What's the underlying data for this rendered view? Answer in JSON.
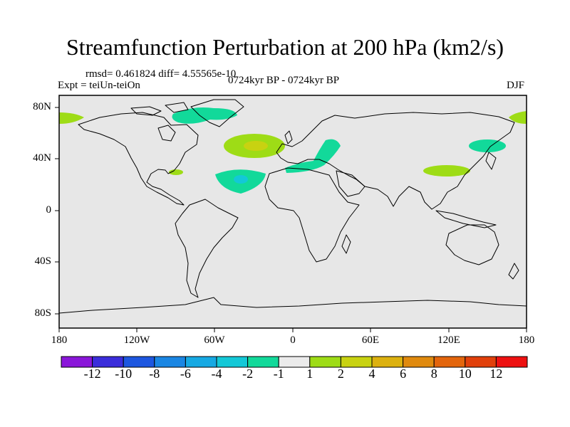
{
  "title": "Streamfunction Perturbation at 200 hPa (km2/s)",
  "stats_line": "rmsd= 0.461824 diff= 4.55565e-10",
  "left_label": "Expt = teiUn-teiOn",
  "center_label": "0724kyr BP - 0724kyr BP",
  "right_label": "DJF",
  "lat_labels": [
    "80N",
    "40N",
    "0",
    "40S",
    "80S"
  ],
  "lon_labels": [
    "180",
    "120W",
    "60W",
    "0",
    "60E",
    "120E",
    "180"
  ],
  "colorbar": {
    "colors": [
      "#8a16d9",
      "#3b2ddb",
      "#1d57e0",
      "#1a86e3",
      "#16a9e3",
      "#13c8d7",
      "#12d99a",
      "#ebebeb",
      "#9edc16",
      "#c8d211",
      "#dcb10f",
      "#e08a0e",
      "#e3650c",
      "#e1400b",
      "#ee1111"
    ],
    "labels": [
      "-12",
      "-10",
      "-8",
      "-6",
      "-4",
      "-2",
      "-1",
      "1",
      "2",
      "4",
      "6",
      "8",
      "10",
      "12"
    ]
  },
  "chart_data": {
    "type": "map",
    "projection": "cylindrical equidistant",
    "xlim": [
      -180,
      180
    ],
    "ylim": [
      -90,
      90
    ],
    "anomalies": [
      {
        "lon": -30,
        "lat": 46,
        "level": 2,
        "core_level": 4
      },
      {
        "lon": -40,
        "lat": 22,
        "level": -1,
        "core_level": -2
      },
      {
        "lon": -75,
        "lat": 70,
        "level": -1
      },
      {
        "lon": -95,
        "lat": 30,
        "level": 2
      },
      {
        "lon": 25,
        "lat": 40,
        "level": -1
      },
      {
        "lon": 145,
        "lat": 50,
        "level": -1
      },
      {
        "lon": 115,
        "lat": 30,
        "level": 2
      },
      {
        "lon": -170,
        "lat": 71,
        "level": 2
      },
      {
        "lon": 175,
        "lat": 71,
        "level": 2
      }
    ]
  }
}
